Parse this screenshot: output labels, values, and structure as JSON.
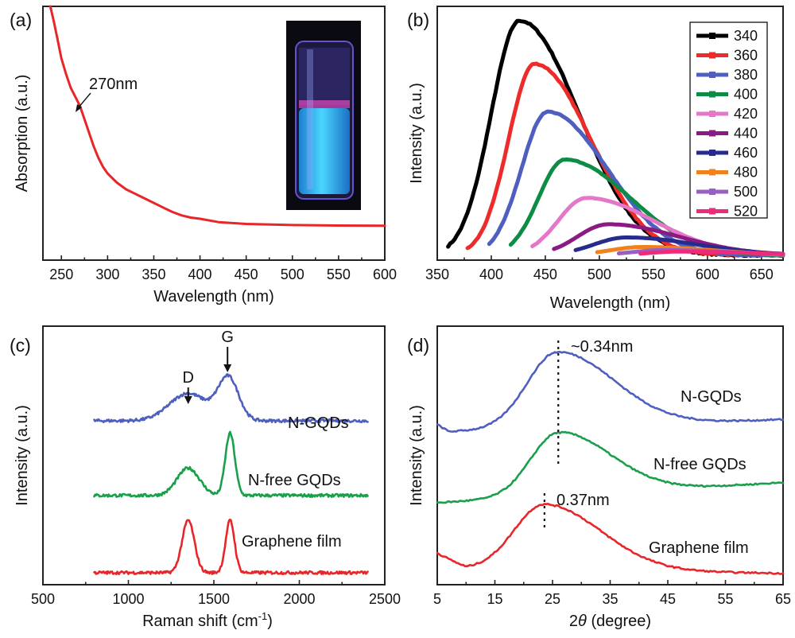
{
  "panels": {
    "a": "(a)",
    "b": "(b)",
    "c": "(c)",
    "d": "(d)"
  },
  "chart_data": [
    {
      "id": "a",
      "type": "line",
      "xlabel": "Wavelength (nm)",
      "ylabel": "Absorption (a.u.)",
      "xlim": [
        230,
        600
      ],
      "xticks": [
        250,
        300,
        350,
        400,
        450,
        500,
        550,
        600
      ],
      "ylim": [
        0,
        1
      ],
      "yticks_shown": false,
      "annotation": "270nm",
      "inset": "photo of vial with blue fluorescence",
      "series": [
        {
          "color": "#e8262a",
          "x": [
            238,
            242,
            246,
            250,
            255,
            260,
            265,
            270,
            275,
            280,
            285,
            290,
            295,
            300,
            310,
            320,
            330,
            340,
            350,
            360,
            370,
            380,
            390,
            400,
            420,
            450,
            500,
            550,
            600
          ],
          "y": [
            1.0,
            0.93,
            0.85,
            0.77,
            0.7,
            0.64,
            0.6,
            0.56,
            0.5,
            0.44,
            0.38,
            0.33,
            0.29,
            0.26,
            0.22,
            0.19,
            0.17,
            0.15,
            0.13,
            0.11,
            0.09,
            0.075,
            0.065,
            0.06,
            0.045,
            0.037,
            0.032,
            0.03,
            0.029
          ]
        }
      ]
    },
    {
      "id": "b",
      "type": "line",
      "xlabel": "Wavelength (nm)",
      "ylabel": "Intensity (a.u.)",
      "xlim": [
        350,
        670
      ],
      "xticks": [
        350,
        400,
        450,
        500,
        550,
        600,
        650
      ],
      "ylim": [
        0,
        1
      ],
      "yticks_shown": false,
      "legend_position": "top-right",
      "series": [
        {
          "name": "340",
          "color": "#000000",
          "start": 360,
          "peak": 426,
          "amp": 0.98,
          "wl": 26,
          "wr": 55
        },
        {
          "name": "360",
          "color": "#ee2b2b",
          "start": 378,
          "peak": 440,
          "amp": 0.8,
          "wl": 24,
          "wr": 52
        },
        {
          "name": "380",
          "color": "#4e5fc0",
          "start": 398,
          "peak": 452,
          "amp": 0.6,
          "wl": 24,
          "wr": 55
        },
        {
          "name": "400",
          "color": "#0d8c45",
          "start": 418,
          "peak": 468,
          "amp": 0.4,
          "wl": 24,
          "wr": 60
        },
        {
          "name": "420",
          "color": "#e577c8",
          "start": 438,
          "peak": 488,
          "amp": 0.24,
          "wl": 26,
          "wr": 62
        },
        {
          "name": "440",
          "color": "#8b1a84",
          "start": 458,
          "peak": 508,
          "amp": 0.13,
          "wl": 28,
          "wr": 65
        },
        {
          "name": "460",
          "color": "#262b8e",
          "start": 478,
          "peak": 525,
          "amp": 0.075,
          "wl": 30,
          "wr": 65
        },
        {
          "name": "480",
          "color": "#f0821e",
          "start": 498,
          "peak": 540,
          "amp": 0.035,
          "wl": 30,
          "wr": 65
        },
        {
          "name": "500",
          "color": "#9a5fc2",
          "start": 518,
          "peak": 560,
          "amp": 0.022,
          "wl": 30,
          "wr": 65
        },
        {
          "name": "520",
          "color": "#ee2a7b",
          "start": 538,
          "peak": 575,
          "amp": 0.016,
          "wl": 30,
          "wr": 65
        }
      ]
    },
    {
      "id": "c",
      "type": "line",
      "xlabel": "Raman shift (cm",
      "xlabel_sup": "-1",
      "xlabel_end": ")",
      "ylabel": "Intensity (a.u.)",
      "xlim": [
        500,
        2500
      ],
      "xticks": [
        500,
        1000,
        1500,
        2000,
        2500
      ],
      "ylim": [
        0,
        1
      ],
      "yticks_shown": false,
      "peak_labels": [
        {
          "text": "D",
          "x": 1350
        },
        {
          "text": "G",
          "x": 1580
        }
      ],
      "series": [
        {
          "name": "N-GQDs",
          "color": "#4e5fc0",
          "offset": 0.62,
          "peaks": [
            {
              "c": 1350,
              "a": 0.11,
              "w": 110
            },
            {
              "c": 1585,
              "a": 0.17,
              "w": 60
            }
          ]
        },
        {
          "name": "N-free GQDs",
          "color": "#1a9f4a",
          "offset": 0.32,
          "peaks": [
            {
              "c": 1350,
              "a": 0.11,
              "w": 65
            },
            {
              "c": 1595,
              "a": 0.25,
              "w": 28
            }
          ]
        },
        {
          "name": "Graphene film",
          "color": "#e8262a",
          "offset": 0.01,
          "peaks": [
            {
              "c": 1350,
              "a": 0.21,
              "w": 36
            },
            {
              "c": 1595,
              "a": 0.21,
              "w": 26
            }
          ]
        }
      ]
    },
    {
      "id": "d",
      "type": "line",
      "xlabel": "2θ (degree)",
      "ylabel": "Intensity (a.u.)",
      "xlim": [
        5,
        65
      ],
      "xticks": [
        5,
        15,
        25,
        35,
        45,
        55,
        65
      ],
      "ylim": [
        0,
        1
      ],
      "yticks_shown": false,
      "annotations": [
        {
          "text": "~0.34nm",
          "x": 26
        },
        {
          "text": "0.37nm",
          "x": 23.6
        }
      ],
      "series": [
        {
          "name": "N-GQDs",
          "color": "#4e5fc0",
          "base": 0.58,
          "tail": 0.63,
          "peak": 25.8,
          "amp": 0.3,
          "w": 6.5
        },
        {
          "name": "N-free GQDs",
          "color": "#1a9f4a",
          "base": 0.3,
          "tail": 0.38,
          "peak": 26,
          "amp": 0.25,
          "w": 6
        },
        {
          "name": "Graphene film",
          "color": "#e8262a",
          "base": 0.04,
          "tail": 0.02,
          "peak": 23.6,
          "amp": 0.26,
          "w": 6.5
        }
      ]
    }
  ]
}
